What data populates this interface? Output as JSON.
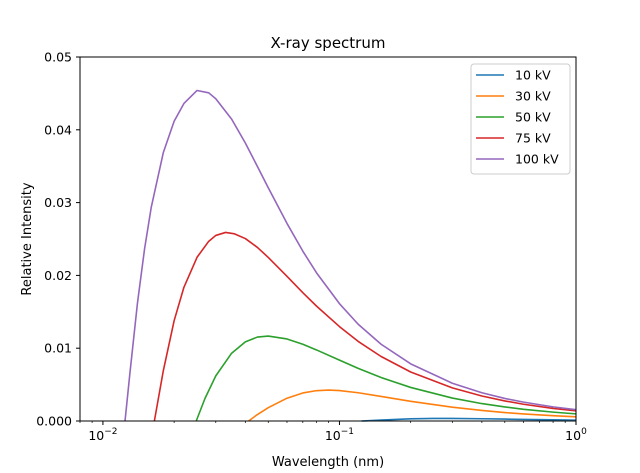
{
  "chart_data": {
    "type": "line",
    "title": "X-ray spectrum",
    "xlabel": "Wavelength (nm)",
    "ylabel": "Relative Intensity",
    "xscale": "log",
    "xlim": [
      0.008,
      1.0
    ],
    "ylim": [
      0.0,
      0.05
    ],
    "x_ticks": [
      {
        "value": 0.01,
        "base": "10",
        "exp": "−2"
      },
      {
        "value": 0.1,
        "base": "10",
        "exp": "−1"
      },
      {
        "value": 1.0,
        "base": "10",
        "exp": "0"
      }
    ],
    "y_ticks": [
      {
        "value": 0.0,
        "label": "0.000"
      },
      {
        "value": 0.01,
        "label": "0.01"
      },
      {
        "value": 0.02,
        "label": "0.02"
      },
      {
        "value": 0.03,
        "label": "0.03"
      },
      {
        "value": 0.04,
        "label": "0.04"
      },
      {
        "value": 0.05,
        "label": "0.05"
      }
    ],
    "grid": false,
    "legend_position": "top-right",
    "series": [
      {
        "name": "10 kV",
        "color": "#1f77b4",
        "x": [
          0.124,
          0.13,
          0.15,
          0.2,
          0.25,
          0.3,
          0.4,
          0.5,
          0.6,
          0.8,
          1.0
        ],
        "y": [
          0.0,
          3e-05,
          0.00013,
          0.0003,
          0.00035,
          0.00035,
          0.00031,
          0.00026,
          0.00022,
          0.00016,
          0.00012
        ]
      },
      {
        "name": "30 kV",
        "color": "#ff7f0e",
        "x": [
          0.0413,
          0.045,
          0.05,
          0.06,
          0.07,
          0.08,
          0.09,
          0.1,
          0.12,
          0.15,
          0.2,
          0.3,
          0.4,
          0.5,
          0.6,
          0.8,
          1.0
        ],
        "y": [
          0.0,
          0.00089,
          0.00183,
          0.00313,
          0.00385,
          0.00417,
          0.00425,
          0.00418,
          0.00388,
          0.00337,
          0.0027,
          0.0019,
          0.00145,
          0.00116,
          0.00097,
          0.00073,
          0.00058
        ]
      },
      {
        "name": "50 kV",
        "color": "#2ca02c",
        "x": [
          0.0248,
          0.027,
          0.03,
          0.035,
          0.04,
          0.045,
          0.05,
          0.06,
          0.07,
          0.08,
          0.1,
          0.12,
          0.15,
          0.2,
          0.3,
          0.4,
          0.5,
          0.6,
          0.8,
          1.0
        ],
        "y": [
          0.0,
          0.00309,
          0.0062,
          0.00931,
          0.01087,
          0.01153,
          0.01167,
          0.01127,
          0.01054,
          0.00976,
          0.00836,
          0.00723,
          0.00597,
          0.00461,
          0.00315,
          0.00239,
          0.00193,
          0.00161,
          0.00122,
          0.00098
        ]
      },
      {
        "name": "75 kV",
        "color": "#d62728",
        "x": [
          0.0165,
          0.018,
          0.02,
          0.022,
          0.025,
          0.028,
          0.03,
          0.033,
          0.036,
          0.04,
          0.045,
          0.05,
          0.06,
          0.07,
          0.08,
          0.1,
          0.12,
          0.15,
          0.2,
          0.3,
          0.4,
          0.5,
          0.6,
          0.8,
          1.0
        ],
        "y": [
          0.0,
          0.0069,
          0.01378,
          0.01837,
          0.02249,
          0.02468,
          0.02549,
          0.0259,
          0.02571,
          0.02506,
          0.02384,
          0.02247,
          0.01987,
          0.01762,
          0.01578,
          0.01297,
          0.01093,
          0.00886,
          0.00673,
          0.00455,
          0.00343,
          0.00276,
          0.0023,
          0.00173,
          0.00139
        ]
      },
      {
        "name": "100 kV",
        "color": "#9467bd",
        "x": [
          0.0124,
          0.013,
          0.014,
          0.015,
          0.016,
          0.018,
          0.02,
          0.022,
          0.025,
          0.028,
          0.03,
          0.035,
          0.04,
          0.045,
          0.05,
          0.06,
          0.07,
          0.08,
          0.1,
          0.12,
          0.15,
          0.2,
          0.3,
          0.4,
          0.5,
          0.6,
          0.8,
          1.0
        ],
        "y": [
          0.0,
          0.00651,
          0.01623,
          0.02366,
          0.02933,
          0.03686,
          0.04118,
          0.04362,
          0.0454,
          0.04508,
          0.04427,
          0.04147,
          0.03819,
          0.03496,
          0.03204,
          0.02714,
          0.02333,
          0.02035,
          0.01612,
          0.01329,
          0.01054,
          0.00785,
          0.00519,
          0.00388,
          0.0031,
          0.00259,
          0.00194,
          0.00155
        ]
      }
    ]
  }
}
